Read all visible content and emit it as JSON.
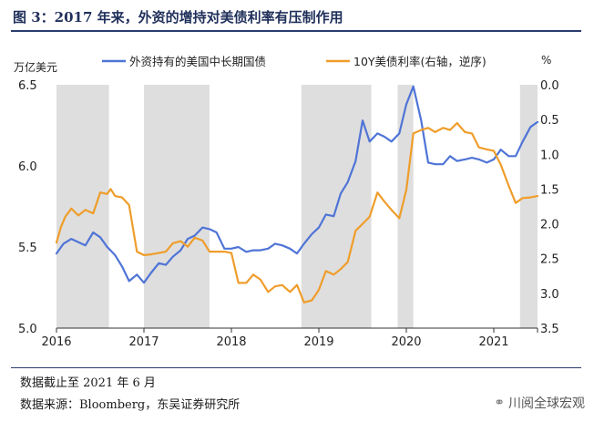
{
  "header": {
    "title": "图 3：2017 年来，外资的增持对美债利率有压制作用"
  },
  "notes": {
    "data_cutoff": "数据截止至 2021 年 6 月",
    "source": "数据来源：Bloomberg，东吴证券研究所"
  },
  "watermark": {
    "text": "川阅全球宏观",
    "icon": "wechat-icon"
  },
  "chart_data": {
    "type": "line",
    "left_unit": "万亿美元",
    "right_unit": "%",
    "x_ticks": [
      "2016",
      "2017",
      "2018",
      "2019",
      "2020",
      "2021"
    ],
    "xlim": [
      2016.0,
      2021.5
    ],
    "left_axis": {
      "ylim": [
        5.0,
        6.5
      ],
      "ticks": [
        "5.0",
        "5.5",
        "6.0",
        "6.5"
      ]
    },
    "right_axis": {
      "ylim": [
        0.0,
        3.5
      ],
      "ticks": [
        "0.0",
        "0.5",
        "1.0",
        "1.5",
        "2.0",
        "2.5",
        "3.0",
        "3.5"
      ],
      "inverted": true
    },
    "shaded_periods": [
      [
        2016.0,
        2016.6
      ],
      [
        2017.0,
        2017.75
      ],
      [
        2018.8,
        2019.6
      ],
      [
        2019.9,
        2020.08
      ],
      [
        2021.3,
        2021.5
      ]
    ],
    "colors": {
      "foreign_holdings": "#4f74d6",
      "yield_10y": "#ef9d2a",
      "shade": "#dedede"
    },
    "series": [
      {
        "name": "外资持有的美国中长期国债",
        "axis": "left",
        "x": [
          2016.0,
          2016.08,
          2016.17,
          2016.33,
          2016.42,
          2016.5,
          2016.58,
          2016.67,
          2016.75,
          2016.83,
          2016.92,
          2017.0,
          2017.08,
          2017.17,
          2017.25,
          2017.33,
          2017.42,
          2017.5,
          2017.58,
          2017.67,
          2017.75,
          2017.83,
          2017.92,
          2018.0,
          2018.08,
          2018.17,
          2018.25,
          2018.33,
          2018.42,
          2018.5,
          2018.58,
          2018.67,
          2018.75,
          2018.83,
          2018.92,
          2019.0,
          2019.08,
          2019.17,
          2019.25,
          2019.33,
          2019.42,
          2019.5,
          2019.58,
          2019.67,
          2019.75,
          2019.83,
          2019.92,
          2020.0,
          2020.08,
          2020.17,
          2020.25,
          2020.33,
          2020.42,
          2020.5,
          2020.58,
          2020.67,
          2020.75,
          2020.83,
          2020.92,
          2021.0,
          2021.08,
          2021.17,
          2021.25,
          2021.33,
          2021.42,
          2021.5
        ],
        "values": [
          5.46,
          5.52,
          5.55,
          5.51,
          5.59,
          5.56,
          5.5,
          5.45,
          5.38,
          5.29,
          5.33,
          5.28,
          5.34,
          5.4,
          5.39,
          5.44,
          5.48,
          5.55,
          5.57,
          5.62,
          5.61,
          5.59,
          5.49,
          5.49,
          5.5,
          5.47,
          5.48,
          5.48,
          5.49,
          5.52,
          5.51,
          5.49,
          5.46,
          5.52,
          5.58,
          5.62,
          5.7,
          5.69,
          5.83,
          5.9,
          6.03,
          6.28,
          6.15,
          6.2,
          6.18,
          6.15,
          6.2,
          6.38,
          6.49,
          6.28,
          6.02,
          6.01,
          6.01,
          6.06,
          6.03,
          6.04,
          6.05,
          6.04,
          6.02,
          6.04,
          6.1,
          6.06,
          6.06,
          6.15,
          6.24,
          6.27
        ]
      },
      {
        "name": "10Y美债利率(右轴，逆序)",
        "axis": "right",
        "x": [
          2016.0,
          2016.05,
          2016.1,
          2016.17,
          2016.25,
          2016.33,
          2016.42,
          2016.5,
          2016.58,
          2016.62,
          2016.67,
          2016.75,
          2016.83,
          2016.92,
          2017.0,
          2017.08,
          2017.17,
          2017.25,
          2017.33,
          2017.42,
          2017.5,
          2017.58,
          2017.67,
          2017.75,
          2017.83,
          2017.92,
          2018.0,
          2018.08,
          2018.17,
          2018.25,
          2018.33,
          2018.42,
          2018.5,
          2018.58,
          2018.67,
          2018.75,
          2018.83,
          2018.92,
          2019.0,
          2019.08,
          2019.17,
          2019.25,
          2019.33,
          2019.42,
          2019.5,
          2019.58,
          2019.67,
          2019.75,
          2019.83,
          2019.92,
          2020.0,
          2020.08,
          2020.17,
          2020.25,
          2020.33,
          2020.42,
          2020.5,
          2020.58,
          2020.67,
          2020.75,
          2020.83,
          2020.92,
          2021.0,
          2021.08,
          2021.17,
          2021.25,
          2021.33,
          2021.42,
          2021.5
        ],
        "values": [
          2.27,
          2.05,
          1.9,
          1.78,
          1.88,
          1.8,
          1.85,
          1.55,
          1.57,
          1.5,
          1.6,
          1.62,
          1.73,
          2.4,
          2.45,
          2.44,
          2.42,
          2.4,
          2.28,
          2.25,
          2.33,
          2.2,
          2.24,
          2.4,
          2.4,
          2.4,
          2.42,
          2.85,
          2.85,
          2.73,
          2.8,
          2.98,
          2.9,
          2.88,
          2.98,
          2.88,
          3.13,
          3.1,
          2.95,
          2.68,
          2.73,
          2.65,
          2.55,
          2.1,
          2.0,
          1.9,
          1.55,
          1.68,
          1.8,
          1.92,
          1.51,
          0.7,
          0.65,
          0.62,
          0.68,
          0.62,
          0.65,
          0.55,
          0.68,
          0.7,
          0.9,
          0.93,
          0.95,
          1.15,
          1.45,
          1.7,
          1.63,
          1.62,
          1.6
        ]
      }
    ]
  }
}
